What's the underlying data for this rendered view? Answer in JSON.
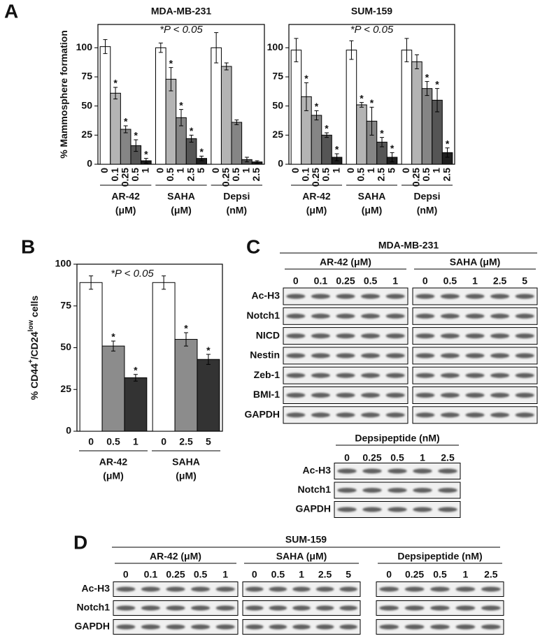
{
  "panel_labels": [
    "A",
    "B",
    "C",
    "D"
  ],
  "chart_data": [
    {
      "type": "bar",
      "title": "MDA-MB-231",
      "annotation": "*P < 0.05",
      "ylabel": [
        "% Mammosphere formation"
      ],
      "ylim": [
        0,
        120
      ],
      "yticks": [
        0,
        25,
        50,
        75,
        100
      ],
      "colors": [
        "#ffffff",
        "#b4b4b4",
        "#858585",
        "#555555",
        "#1e1e1e"
      ],
      "groups": [
        {
          "name": "AR-42",
          "unit": "(μM)",
          "categories": [
            "0",
            "0.1",
            "0.25",
            "0.5",
            "1"
          ],
          "values": [
            101,
            61,
            30,
            16,
            3
          ],
          "errors": [
            6,
            5,
            3,
            5,
            2
          ],
          "significance": [
            null,
            "*",
            "*",
            "*",
            "*"
          ]
        },
        {
          "name": "SAHA",
          "unit": "(μM)",
          "categories": [
            "0",
            "0.5",
            "1",
            "2.5",
            "5"
          ],
          "values": [
            100,
            73,
            40,
            22,
            5
          ],
          "errors": [
            4,
            10,
            7,
            3,
            2
          ],
          "significance": [
            null,
            "*",
            "*",
            "*",
            "*"
          ]
        },
        {
          "name": "Depsi",
          "unit": "(nM)",
          "categories": [
            "0",
            "0.25",
            "0.5",
            "1",
            "2.5"
          ],
          "values": [
            100,
            84,
            36,
            4,
            2
          ],
          "errors": [
            13,
            3,
            2,
            2,
            1
          ],
          "significance": [
            null,
            null,
            null,
            null,
            null
          ]
        }
      ]
    },
    {
      "type": "bar",
      "title": "SUM-159",
      "annotation": "*P < 0.05",
      "ylim": [
        0,
        120
      ],
      "yticks": [
        0,
        25,
        50,
        75,
        100
      ],
      "colors": [
        "#ffffff",
        "#b4b4b4",
        "#858585",
        "#555555",
        "#1e1e1e"
      ],
      "groups": [
        {
          "name": "AR-42",
          "unit": "(μM)",
          "categories": [
            "0",
            "0.1",
            "0.25",
            "0.5",
            "1"
          ],
          "values": [
            98,
            58,
            42,
            25,
            6
          ],
          "errors": [
            10,
            12,
            4,
            2,
            3
          ],
          "significance": [
            null,
            "*",
            "*",
            "*",
            "*"
          ]
        },
        {
          "name": "SAHA",
          "unit": "(μM)",
          "categories": [
            "0",
            "0.5",
            "1",
            "2.5",
            "5"
          ],
          "values": [
            98,
            51,
            37,
            19,
            6
          ],
          "errors": [
            8,
            2,
            12,
            4,
            4
          ],
          "significance": [
            null,
            "*",
            "*",
            "*",
            "*"
          ]
        },
        {
          "name": "Depsi",
          "unit": "(nM)",
          "categories": [
            "0",
            "0.25",
            "0.5",
            "1",
            "2.5"
          ],
          "values": [
            98,
            88,
            65,
            55,
            10
          ],
          "errors": [
            10,
            6,
            6,
            10,
            4
          ],
          "significance": [
            null,
            null,
            "*",
            "*",
            "*"
          ]
        }
      ]
    },
    {
      "type": "bar",
      "annotation": "*P < 0.05",
      "ylabel": [
        "% CD44",
        "+",
        "/CD24",
        "low",
        " cells"
      ],
      "ylim": [
        0,
        100
      ],
      "yticks": [
        0,
        25,
        50,
        75,
        100
      ],
      "colors": [
        "#ffffff",
        "#8c8c8c",
        "#333333"
      ],
      "groups": [
        {
          "name": "AR-42",
          "unit": "(μM)",
          "categories": [
            "0",
            "0.5",
            "1"
          ],
          "values": [
            89,
            51,
            32
          ],
          "errors": [
            4,
            3,
            2
          ],
          "significance": [
            null,
            "*",
            "*"
          ]
        },
        {
          "name": "SAHA",
          "unit": "(μM)",
          "categories": [
            "0",
            "2.5",
            "5"
          ],
          "values": [
            89,
            55,
            43
          ],
          "errors": [
            4,
            4,
            3
          ],
          "significance": [
            null,
            "*",
            "*"
          ]
        }
      ]
    }
  ],
  "blots": [
    {
      "title": "MDA-MB-231",
      "rows": [
        "Ac-H3",
        "Notch1",
        "NICD",
        "Nestin",
        "Zeb-1",
        "BMI-1",
        "GAPDH"
      ],
      "groups": [
        {
          "name": "AR-42 (μM)",
          "lanes": [
            "0",
            "0.1",
            "0.25",
            "0.5",
            "1"
          ]
        },
        {
          "name": "SAHA (μM)",
          "lanes": [
            "0",
            "0.5",
            "1",
            "2.5",
            "5"
          ]
        }
      ]
    },
    {
      "rows": [
        "Ac-H3",
        "Notch1",
        "GAPDH"
      ],
      "groups": [
        {
          "name": "Depsipeptide (nM)",
          "lanes": [
            "0",
            "0.25",
            "0.5",
            "1",
            "2.5"
          ]
        }
      ]
    },
    {
      "title": "SUM-159",
      "rows": [
        "Ac-H3",
        "Notch1",
        "GAPDH"
      ],
      "groups": [
        {
          "name": "AR-42 (μM)",
          "lanes": [
            "0",
            "0.1",
            "0.25",
            "0.5",
            "1"
          ]
        },
        {
          "name": "SAHA (μM)",
          "lanes": [
            "0",
            "0.5",
            "1",
            "2.5",
            "5"
          ]
        },
        {
          "name": "Depsipeptide (nM)",
          "lanes": [
            "0",
            "0.25",
            "0.5",
            "1",
            "2.5"
          ]
        }
      ]
    }
  ]
}
